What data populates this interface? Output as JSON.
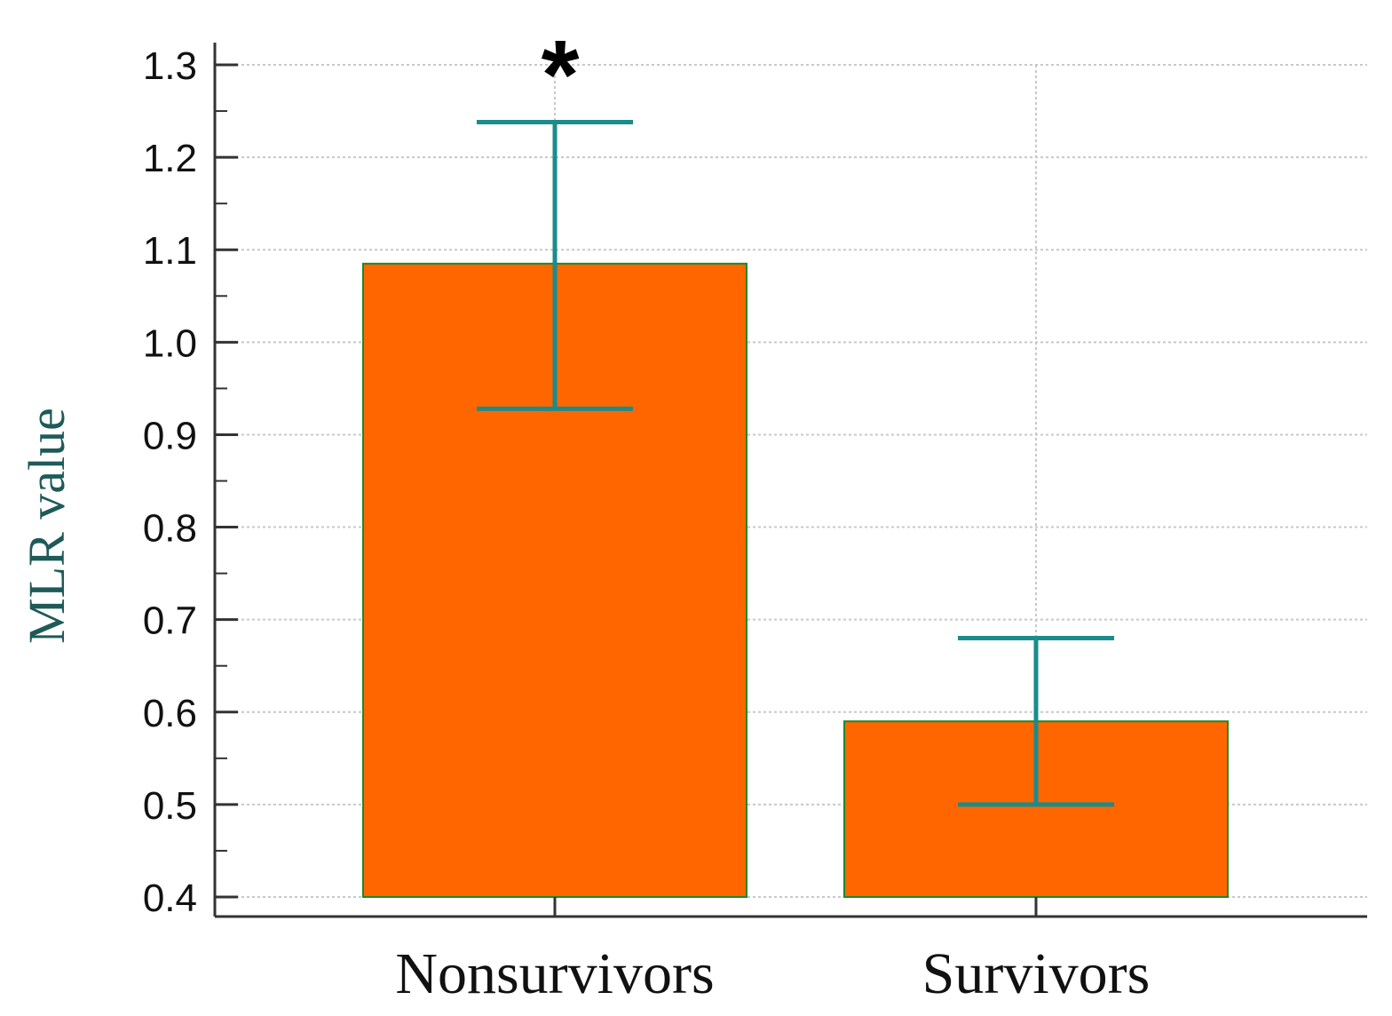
{
  "chart_data": {
    "type": "bar",
    "categories": [
      "Nonsurvivors",
      "Survivors"
    ],
    "values": [
      1.085,
      0.59
    ],
    "error_bars": [
      {
        "low": 0.928,
        "high": 1.238
      },
      {
        "low": 0.5,
        "high": 0.68
      }
    ],
    "annotations": [
      {
        "category": "Nonsurvivors",
        "text": "*"
      }
    ],
    "title": "",
    "xlabel": "",
    "ylabel": "MLR value",
    "ylim": [
      0.4,
      1.3
    ],
    "yticks": [
      "0.4",
      "0.5",
      "0.6",
      "0.7",
      "0.8",
      "0.9",
      "1.0",
      "1.1",
      "1.2",
      "1.3"
    ],
    "grid": true,
    "legend": "none",
    "colors": {
      "bar_fill": "#ff6600",
      "bar_edge": "#1a8a2a",
      "error_bar": "#1a8c8c",
      "axis_title": "#1f5a5a",
      "grid": "#c8c8c8"
    }
  }
}
